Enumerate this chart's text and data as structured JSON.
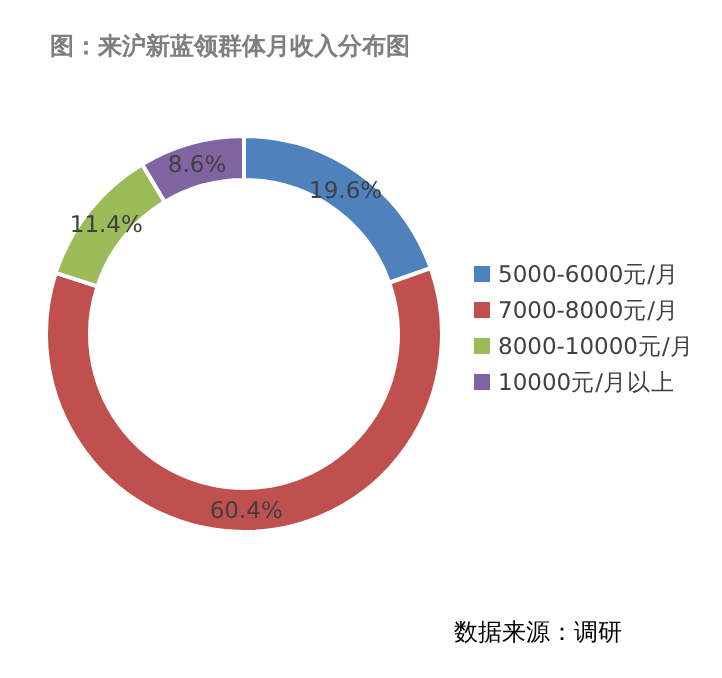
{
  "chart_data": {
    "type": "donut",
    "title": "图：来沪新蓝领群体月收入分布图",
    "categories": [
      "5000-6000元/月",
      "7000-8000元/月",
      "8000-10000元/月",
      "10000元/月以上"
    ],
    "values": [
      19.6,
      60.4,
      11.4,
      8.6
    ],
    "value_labels": [
      "19.6%",
      "60.4%",
      "11.4%",
      "8.6%"
    ],
    "colors": [
      "#4f81bd",
      "#c0504d",
      "#9bbb59",
      "#8064a2"
    ],
    "legend": "right",
    "annotations": [
      "数据来源：调研"
    ]
  }
}
